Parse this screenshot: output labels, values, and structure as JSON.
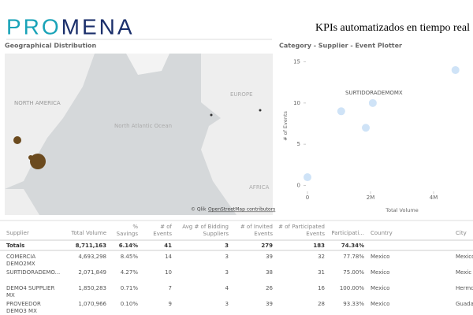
{
  "header": {
    "logo": "PROMENA",
    "title": "KPIs automatizados en tiempo real"
  },
  "map": {
    "title": "Geographical Distribution",
    "labels": [
      "NORTH AMERICA",
      "EUROPE",
      "North Atlantic Ocean",
      "AFRICA"
    ],
    "attribution": [
      "© Qlik",
      "OpenStreetMap contributors"
    ]
  },
  "scatter": {
    "title": "Category - Supplier - Event Plotter",
    "x_label": "Total Volume",
    "y_label": "# of Events",
    "annotation": "SURTIDORADEMOMX",
    "xlim": [
      0,
      5250000
    ],
    "ylim": [
      -1,
      16
    ],
    "xticks": [
      0,
      {
        "value": 2000000,
        "label": "2M"
      },
      {
        "value": 4000000,
        "label": "4M"
      }
    ],
    "yticks": [
      0,
      5,
      10,
      15
    ],
    "x": [
      0,
      1070966,
      1850283,
      2071849,
      4693298
    ],
    "y": [
      1,
      9,
      7,
      10,
      14
    ],
    "color": "#cfe3f7"
  },
  "table": {
    "headers": [
      "Supplier",
      "Total Volume",
      "% Savings",
      "# of Events",
      "Avg # of Bidding Suppliers",
      "# of Invited Events",
      "# of Participated Events",
      "Participati...",
      "Country",
      "City"
    ],
    "totals": [
      "Totals",
      "8,711,163",
      "6.14%",
      "41",
      "3",
      "279",
      "183",
      "74.34%"
    ],
    "rows": [
      [
        "COMERCIA DEMO2MX",
        "4,693,298",
        "8.45%",
        "14",
        "3",
        "39",
        "32",
        "77.78%",
        "Mexico",
        "Mexico"
      ],
      [
        "SURTIDORADEMO...",
        "2,071,849",
        "4.27%",
        "10",
        "3",
        "38",
        "31",
        "75.00%",
        "Mexico",
        "Mexic"
      ],
      [
        "DEMO4 SUPPLIER MX",
        "1,850,283",
        "0.71%",
        "7",
        "4",
        "26",
        "16",
        "100.00%",
        "Mexico",
        "Hermo"
      ],
      [
        "PROVEEDOR DEMO3 MX",
        "1,070,966",
        "0.10%",
        "9",
        "3",
        "39",
        "28",
        "93.33%",
        "Mexico",
        "Guadal"
      ]
    ]
  }
}
